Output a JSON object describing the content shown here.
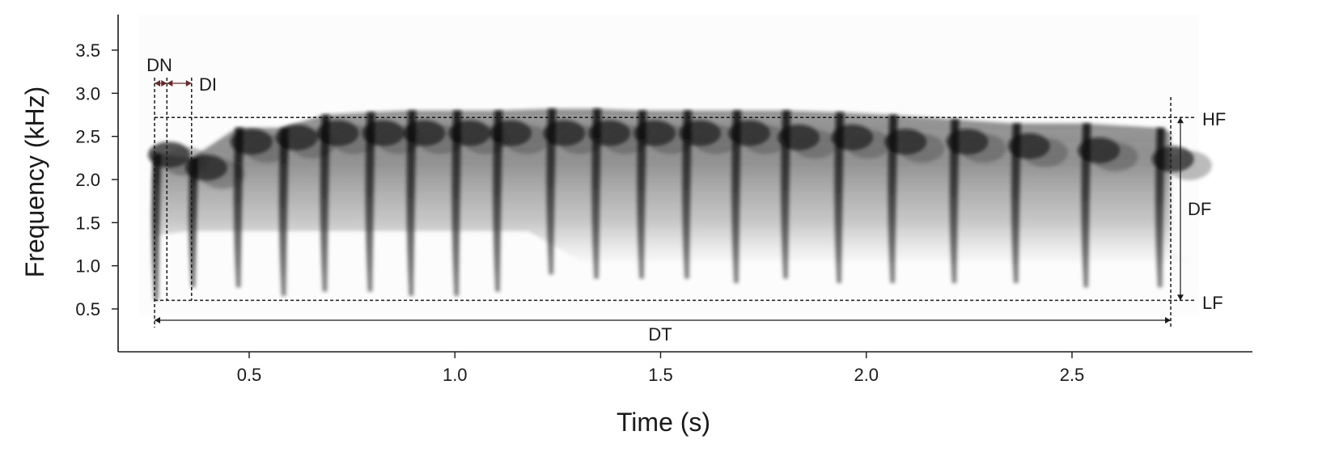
{
  "chart_data": {
    "type": "spectrogram",
    "xlabel": "Time (s)",
    "ylabel": "Frequency (kHz)",
    "xlim": [
      0.2,
      2.85
    ],
    "ylim": [
      0.0,
      3.9
    ],
    "xticks": [
      {
        "value": 0.5,
        "label": "0.5"
      },
      {
        "value": 1.0,
        "label": "1.0"
      },
      {
        "value": 1.5,
        "label": "1.5"
      },
      {
        "value": 2.0,
        "label": "2.0"
      },
      {
        "value": 2.5,
        "label": "2.5"
      }
    ],
    "yticks": [
      {
        "value": 0.5,
        "label": "0.5"
      },
      {
        "value": 1.0,
        "label": "1.0"
      },
      {
        "value": 1.5,
        "label": "1.5"
      },
      {
        "value": 2.0,
        "label": "2.0"
      },
      {
        "value": 2.5,
        "label": "2.5"
      },
      {
        "value": 3.0,
        "label": "3.0"
      },
      {
        "value": 3.5,
        "label": "3.5"
      }
    ],
    "notes": [
      {
        "start": 0.27,
        "high": 2.3,
        "low": 0.6,
        "peak": 2.25
      },
      {
        "start": 0.36,
        "high": 2.25,
        "low": 0.75,
        "peak": 2.1
      },
      {
        "start": 0.47,
        "high": 2.6,
        "low": 0.75,
        "peak": 2.4
      },
      {
        "start": 0.58,
        "high": 2.6,
        "low": 0.65,
        "peak": 2.45
      },
      {
        "start": 0.68,
        "high": 2.75,
        "low": 0.7,
        "peak": 2.5
      },
      {
        "start": 0.79,
        "high": 2.78,
        "low": 0.7,
        "peak": 2.5
      },
      {
        "start": 0.89,
        "high": 2.8,
        "low": 0.65,
        "peak": 2.5
      },
      {
        "start": 1.0,
        "high": 2.8,
        "low": 0.65,
        "peak": 2.5
      },
      {
        "start": 1.1,
        "high": 2.8,
        "low": 0.7,
        "peak": 2.5
      },
      {
        "start": 1.23,
        "high": 2.82,
        "low": 0.9,
        "peak": 2.5
      },
      {
        "start": 1.34,
        "high": 2.82,
        "low": 0.85,
        "peak": 2.5
      },
      {
        "start": 1.45,
        "high": 2.8,
        "low": 0.85,
        "peak": 2.5
      },
      {
        "start": 1.56,
        "high": 2.8,
        "low": 0.85,
        "peak": 2.5
      },
      {
        "start": 1.68,
        "high": 2.8,
        "low": 0.8,
        "peak": 2.5
      },
      {
        "start": 1.8,
        "high": 2.8,
        "low": 0.85,
        "peak": 2.45
      },
      {
        "start": 1.93,
        "high": 2.78,
        "low": 0.8,
        "peak": 2.45
      },
      {
        "start": 2.06,
        "high": 2.75,
        "low": 0.8,
        "peak": 2.4
      },
      {
        "start": 2.21,
        "high": 2.7,
        "low": 0.8,
        "peak": 2.4
      },
      {
        "start": 2.36,
        "high": 2.65,
        "low": 0.8,
        "peak": 2.35
      },
      {
        "start": 2.53,
        "high": 2.65,
        "low": 0.75,
        "peak": 2.3
      },
      {
        "start": 2.71,
        "high": 2.6,
        "low": 0.75,
        "peak": 2.2
      }
    ],
    "measurements": {
      "DN": {
        "label": "DN",
        "start": 0.27,
        "end": 0.3
      },
      "DI": {
        "label": "DI",
        "start": 0.3,
        "end": 0.36
      },
      "DT": {
        "label": "DT",
        "start": 0.27,
        "end": 2.74
      },
      "HF": {
        "label": "HF",
        "value": 2.72
      },
      "LF": {
        "label": "LF",
        "value": 0.6
      },
      "DF": {
        "label": "DF"
      }
    }
  }
}
